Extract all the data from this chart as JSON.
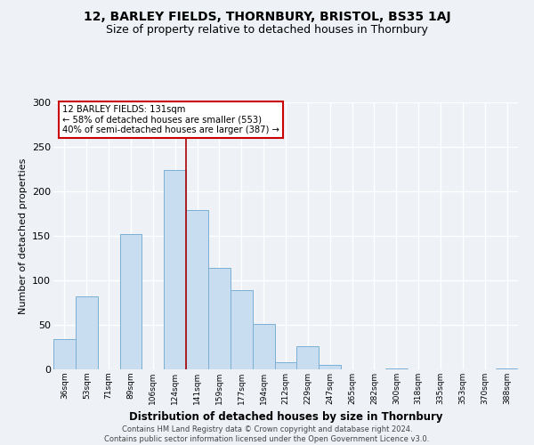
{
  "title": "12, BARLEY FIELDS, THORNBURY, BRISTOL, BS35 1AJ",
  "subtitle": "Size of property relative to detached houses in Thornbury",
  "xlabel": "Distribution of detached houses by size in Thornbury",
  "ylabel": "Number of detached properties",
  "bar_labels": [
    "36sqm",
    "53sqm",
    "71sqm",
    "89sqm",
    "106sqm",
    "124sqm",
    "141sqm",
    "159sqm",
    "177sqm",
    "194sqm",
    "212sqm",
    "229sqm",
    "247sqm",
    "265sqm",
    "282sqm",
    "300sqm",
    "318sqm",
    "335sqm",
    "353sqm",
    "370sqm",
    "388sqm"
  ],
  "bar_values": [
    34,
    82,
    0,
    152,
    0,
    224,
    179,
    114,
    89,
    51,
    8,
    26,
    5,
    0,
    0,
    1,
    0,
    0,
    0,
    0,
    1
  ],
  "bar_color": "#c8ddf0",
  "bar_edge_color": "#7aafd4",
  "vline_color": "#aa0000",
  "vline_x": 5.5,
  "annotation_box_color": "#ffffff",
  "annotation_box_edge": "#cc0000",
  "property_label": "12 BARLEY FIELDS: 131sqm",
  "annotation_line1": "← 58% of detached houses are smaller (553)",
  "annotation_line2": "40% of semi-detached houses are larger (387) →",
  "footer_line1": "Contains HM Land Registry data © Crown copyright and database right 2024.",
  "footer_line2": "Contains public sector information licensed under the Open Government Licence v3.0.",
  "ylim": [
    0,
    300
  ],
  "background_color": "#eef2f7",
  "grid_color": "#ffffff",
  "title_fontsize": 10,
  "subtitle_fontsize": 9
}
